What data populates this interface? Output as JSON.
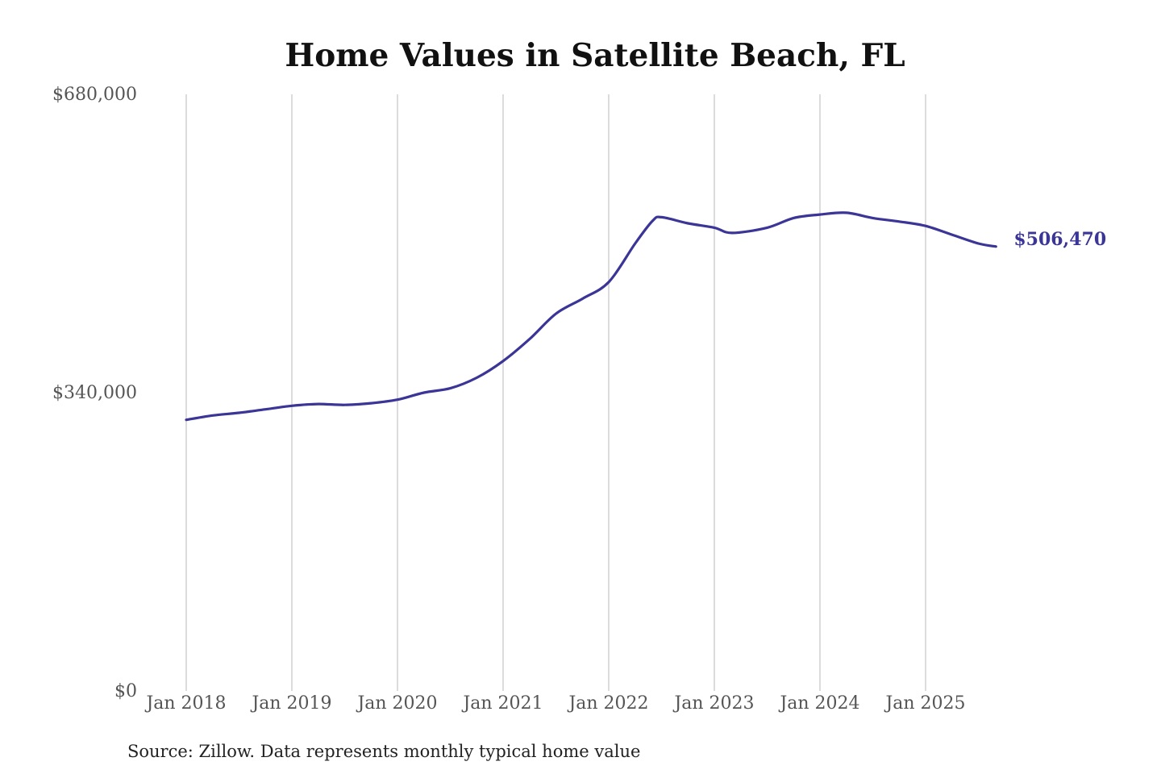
{
  "chart_data": {
    "type": "line",
    "title": "Home Values in Satellite Beach, FL",
    "source": "Source: Zillow. Data represents monthly typical home value",
    "series_color": "#3a3596",
    "y_range": [
      0,
      680000
    ],
    "y_ticks": [
      {
        "value": 0,
        "label": "$0"
      },
      {
        "value": 340000,
        "label": "$340,000"
      },
      {
        "value": 680000,
        "label": "$680,000"
      }
    ],
    "x_ticks": [
      "Jan 2018",
      "Jan 2019",
      "Jan 2020",
      "Jan 2021",
      "Jan 2022",
      "Jan 2023",
      "Jan 2024",
      "Jan 2025"
    ],
    "grid": {
      "vertical": true,
      "horizontal": false
    },
    "series": [
      {
        "end_label": "$506,470",
        "points": [
          [
            "2018-01",
            309000
          ],
          [
            "2018-04",
            314000
          ],
          [
            "2018-07",
            317000
          ],
          [
            "2018-10",
            321000
          ],
          [
            "2019-01",
            325000
          ],
          [
            "2019-04",
            327000
          ],
          [
            "2019-07",
            326000
          ],
          [
            "2019-10",
            328000
          ],
          [
            "2020-01",
            332000
          ],
          [
            "2020-04",
            340000
          ],
          [
            "2020-07",
            345000
          ],
          [
            "2020-10",
            357000
          ],
          [
            "2021-01",
            376000
          ],
          [
            "2021-04",
            401000
          ],
          [
            "2021-07",
            430000
          ],
          [
            "2021-10",
            447000
          ],
          [
            "2022-01",
            466000
          ],
          [
            "2022-04",
            510000
          ],
          [
            "2022-06",
            536000
          ],
          [
            "2022-07",
            540000
          ],
          [
            "2022-10",
            533000
          ],
          [
            "2023-01",
            528000
          ],
          [
            "2023-03",
            522000
          ],
          [
            "2023-07",
            528000
          ],
          [
            "2023-10",
            539000
          ],
          [
            "2024-01",
            543000
          ],
          [
            "2024-04",
            545000
          ],
          [
            "2024-07",
            539000
          ],
          [
            "2024-10",
            535000
          ],
          [
            "2025-01",
            530000
          ],
          [
            "2025-04",
            520000
          ],
          [
            "2025-07",
            510000
          ],
          [
            "2025-09",
            506470
          ]
        ]
      }
    ]
  }
}
